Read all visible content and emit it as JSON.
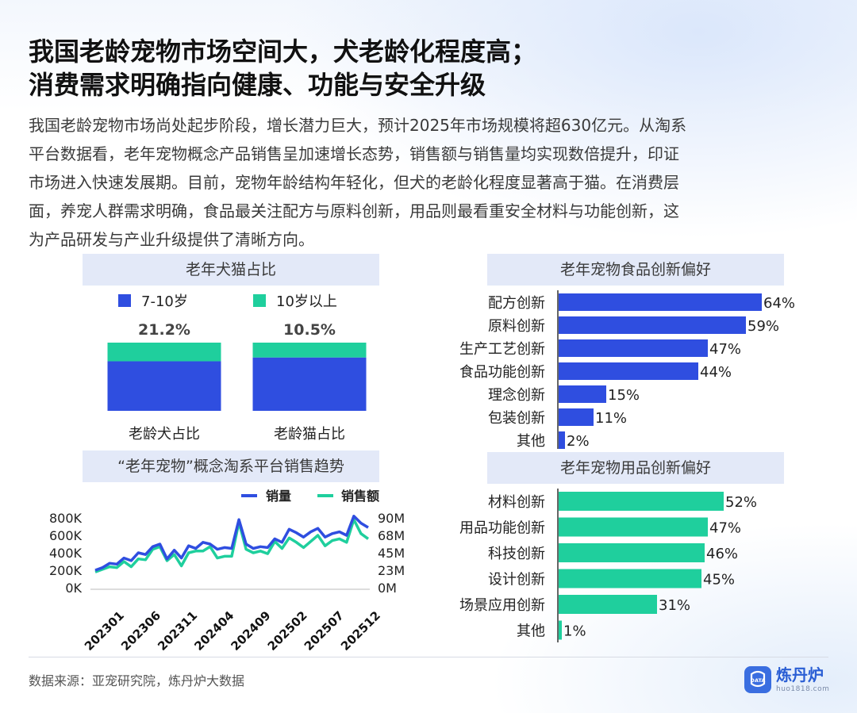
{
  "headline": {
    "line1": "我国老龄宠物市场空间大，犬老龄化程度高；",
    "line2": "消费需求明确指向健康、功能与安全升级"
  },
  "intro": [
    "我国老龄宠物市场尚处起步阶段，增长潜力巨大，预计2025年市场规模将超630亿元。从淘系",
    "平台数据看，老年宠物概念产品销售呈加速增长态势，销售额与销售量均实现数倍提升，印证",
    "市场进入快速发展期。目前，宠物年龄结构年轻化，但犬的老龄化程度显著高于猫。在消费层",
    "面，养宠人群需求明确，食品最关注配方与原料创新，用品则最看重安全材料与功能创新，这",
    "为产品研发与产业升级提供了清晰方向。"
  ],
  "source": "数据来源：亚宠研究院，炼丹炉大数据",
  "logo": {
    "name": "炼丹炉",
    "url": "huo1818.com",
    "mark_text": "DATA"
  },
  "colors": {
    "blue": "#2f4ee0",
    "green": "#1fcf9d",
    "accent_blue": "#3a6ee0",
    "title_bg": "#e3e9f8"
  },
  "chart_data": [
    {
      "id": "pet-age",
      "type": "bar",
      "title": "老年犬猫占比",
      "legend": [
        "7-10岁",
        "10岁以上"
      ],
      "categories": [
        "老龄犬占比",
        "老龄猫占比"
      ],
      "totals_label": [
        "21.2%",
        "10.5%"
      ],
      "series": [
        {
          "name": "7-10岁",
          "values": [
            15.4,
            8.2
          ]
        },
        {
          "name": "10岁以上",
          "values": [
            5.8,
            2.3
          ]
        }
      ]
    },
    {
      "id": "sales-trend",
      "type": "line",
      "title": "“老年宠物”概念淘系平台销售趋势",
      "legend": [
        "销量",
        "销售额"
      ],
      "x_ticks": [
        "202301",
        "202306",
        "202311",
        "202404",
        "202409",
        "202502",
        "202507",
        "202512"
      ],
      "y_left_ticks": [
        "800K",
        "600K",
        "400K",
        "200K",
        "0K"
      ],
      "y_right_ticks": [
        "90M",
        "68M",
        "45M",
        "23M",
        "0M"
      ],
      "y_left_range": [
        0,
        800000
      ],
      "y_right_range": [
        0,
        90000000
      ],
      "series": [
        {
          "name": "销量",
          "axis": "left",
          "values": [
            200000,
            230000,
            280000,
            270000,
            340000,
            310000,
            400000,
            380000,
            470000,
            500000,
            330000,
            430000,
            340000,
            480000,
            450000,
            520000,
            500000,
            440000,
            460000,
            450000,
            780000,
            500000,
            450000,
            470000,
            460000,
            560000,
            520000,
            670000,
            630000,
            580000,
            640000,
            680000,
            580000,
            620000,
            640000,
            600000,
            820000,
            740000,
            690000
          ]
        },
        {
          "name": "销售额",
          "axis": "left",
          "values": [
            180000,
            210000,
            240000,
            230000,
            300000,
            240000,
            330000,
            320000,
            440000,
            470000,
            310000,
            380000,
            250000,
            400000,
            420000,
            420000,
            470000,
            340000,
            360000,
            360000,
            750000,
            440000,
            400000,
            420000,
            390000,
            530000,
            450000,
            570000,
            520000,
            460000,
            530000,
            600000,
            480000,
            540000,
            560000,
            520000,
            780000,
            620000,
            560000
          ]
        }
      ]
    },
    {
      "id": "food-innovation",
      "type": "bar",
      "orientation": "horizontal",
      "title": "老年宠物食品创新偏好",
      "categories": [
        "配方创新",
        "原料创新",
        "生产工艺创新",
        "食品功能创新",
        "理念创新",
        "包装创新",
        "其他"
      ],
      "values": [
        64,
        59,
        47,
        44,
        15,
        11,
        2
      ],
      "value_labels": [
        "64%",
        "59%",
        "47%",
        "44%",
        "15%",
        "11%",
        "2%"
      ],
      "xlim": [
        0,
        100
      ]
    },
    {
      "id": "goods-innovation",
      "type": "bar",
      "orientation": "horizontal",
      "title": "老年宠物用品创新偏好",
      "categories": [
        "材料创新",
        "用品功能创新",
        "科技创新",
        "设计创新",
        "场景应用创新",
        "其他"
      ],
      "values": [
        52,
        47,
        46,
        45,
        31,
        1
      ],
      "value_labels": [
        "52%",
        "47%",
        "46%",
        "45%",
        "31%",
        "1%"
      ],
      "xlim": [
        0,
        100
      ]
    }
  ]
}
